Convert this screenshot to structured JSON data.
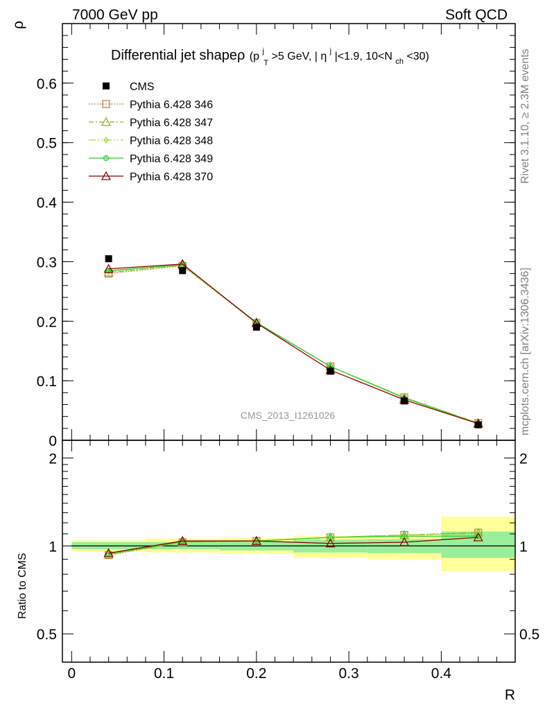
{
  "header": {
    "left": "7000 GeV pp",
    "right": "Soft QCD"
  },
  "plot_title": {
    "main": "Differential jet shapeρ",
    "cut_p": "(p",
    "cut_p_sup": "j",
    "cut_p_sub": "T",
    "cut_pt": ">5 GeV, |",
    "cut_eta": "η",
    "cut_eta_sup": "j",
    "cut_eta_rest": "|<1.9, 10<N",
    "cut_nch_sub": "ch",
    "cut_end": "<30)"
  },
  "side_labels": {
    "rivet": "Rivet 3.1.10, ≥ 2.3M events",
    "mcplots": "mcplots.cern.ch [arXiv:1306.3436]"
  },
  "watermark": "CMS_2013_I1261026",
  "legend": [
    {
      "label": "CMS"
    },
    {
      "label": "Pythia 6.428 346"
    },
    {
      "label": "Pythia 6.428 347"
    },
    {
      "label": "Pythia 6.428 348"
    },
    {
      "label": "Pythia 6.428 349"
    },
    {
      "label": "Pythia 6.428 370"
    }
  ],
  "chart_data": [
    {
      "type": "line",
      "panel": "main",
      "xlabel": "",
      "ylabel": "ρ",
      "xlim": [
        -0.01,
        0.48
      ],
      "ylim": [
        0,
        0.7
      ],
      "yticks": [
        {
          "v": 0,
          "label": "0"
        },
        {
          "v": 0.1,
          "label": "0.1"
        },
        {
          "v": 0.2,
          "label": "0.2"
        },
        {
          "v": 0.3,
          "label": "0.3"
        },
        {
          "v": 0.4,
          "label": "0.4"
        },
        {
          "v": 0.5,
          "label": "0.5"
        },
        {
          "v": 0.6,
          "label": "0.6"
        }
      ],
      "x": [
        0.04,
        0.12,
        0.2,
        0.28,
        0.36,
        0.44
      ],
      "series": [
        {
          "name": "CMS",
          "color": "#000000",
          "marker": "square-filled",
          "dash": "none",
          "values": [
            0.305,
            0.285,
            0.19,
            0.116,
            0.066,
            0.026
          ]
        },
        {
          "name": "Pythia 6.428 346",
          "color": "#b8864b",
          "marker": "square-open",
          "dash": "dotted",
          "values": [
            0.28,
            0.293,
            0.197,
            0.124,
            0.072,
            0.029
          ]
        },
        {
          "name": "Pythia 6.428 347",
          "color": "#8cb32b",
          "marker": "triangle-open",
          "dash": "dashdot",
          "values": [
            0.282,
            0.294,
            0.198,
            0.124,
            0.072,
            0.029
          ]
        },
        {
          "name": "Pythia 6.428 348",
          "color": "#99dd33",
          "marker": "diamond-open",
          "dash": "dashdot2",
          "values": [
            0.283,
            0.294,
            0.198,
            0.124,
            0.072,
            0.029
          ]
        },
        {
          "name": "Pythia 6.428 349",
          "color": "#33cc33",
          "marker": "circle-cross",
          "dash": "none",
          "values": [
            0.285,
            0.295,
            0.198,
            0.124,
            0.071,
            0.028
          ]
        },
        {
          "name": "Pythia 6.428 370",
          "color": "#8b0000",
          "marker": "triangle-open",
          "dash": "none",
          "values": [
            0.288,
            0.296,
            0.197,
            0.118,
            0.068,
            0.028
          ]
        }
      ]
    },
    {
      "type": "line",
      "panel": "ratio",
      "xlabel": "R",
      "ylabel": "Ratio to CMS",
      "xlim": [
        -0.01,
        0.48
      ],
      "ylim": [
        0.4,
        2.3
      ],
      "log_y": true,
      "yticks": [
        {
          "v": 0.5,
          "label": "0.5"
        },
        {
          "v": 1,
          "label": "1"
        },
        {
          "v": 2,
          "label": "2"
        }
      ],
      "xticks": [
        {
          "v": 0,
          "label": "0"
        },
        {
          "v": 0.1,
          "label": "0.1"
        },
        {
          "v": 0.2,
          "label": "0.2"
        },
        {
          "v": 0.3,
          "label": "0.3"
        },
        {
          "v": 0.4,
          "label": "0.4"
        }
      ],
      "x": [
        0.04,
        0.12,
        0.2,
        0.28,
        0.36,
        0.44
      ],
      "bins": [
        [
          0.0,
          0.08
        ],
        [
          0.08,
          0.16
        ],
        [
          0.16,
          0.24
        ],
        [
          0.24,
          0.32
        ],
        [
          0.32,
          0.4
        ],
        [
          0.4,
          0.48
        ]
      ],
      "band_total": [
        [
          0.955,
          1.045
        ],
        [
          0.95,
          1.06
        ],
        [
          0.94,
          1.065
        ],
        [
          0.91,
          1.08
        ],
        [
          0.9,
          1.085
        ],
        [
          0.82,
          1.26
        ]
      ],
      "band_stat": [
        [
          0.975,
          1.03
        ],
        [
          0.975,
          1.03
        ],
        [
          0.965,
          1.035
        ],
        [
          0.95,
          1.05
        ],
        [
          0.945,
          1.055
        ],
        [
          0.91,
          1.12
        ]
      ],
      "band_colors": {
        "total": "#ffff99",
        "stat": "#99ee99"
      },
      "series": [
        {
          "name": "Pythia 6.428 346",
          "values": [
            0.93,
            1.03,
            1.04,
            1.07,
            1.09,
            1.11
          ]
        },
        {
          "name": "Pythia 6.428 347",
          "values": [
            0.935,
            1.03,
            1.04,
            1.07,
            1.09,
            1.11
          ]
        },
        {
          "name": "Pythia 6.428 348",
          "values": [
            0.937,
            1.03,
            1.04,
            1.07,
            1.09,
            1.1
          ]
        },
        {
          "name": "Pythia 6.428 349",
          "values": [
            0.94,
            1.035,
            1.04,
            1.07,
            1.08,
            1.08
          ]
        },
        {
          "name": "Pythia 6.428 370",
          "values": [
            0.945,
            1.04,
            1.04,
            1.02,
            1.03,
            1.07
          ]
        }
      ]
    }
  ]
}
